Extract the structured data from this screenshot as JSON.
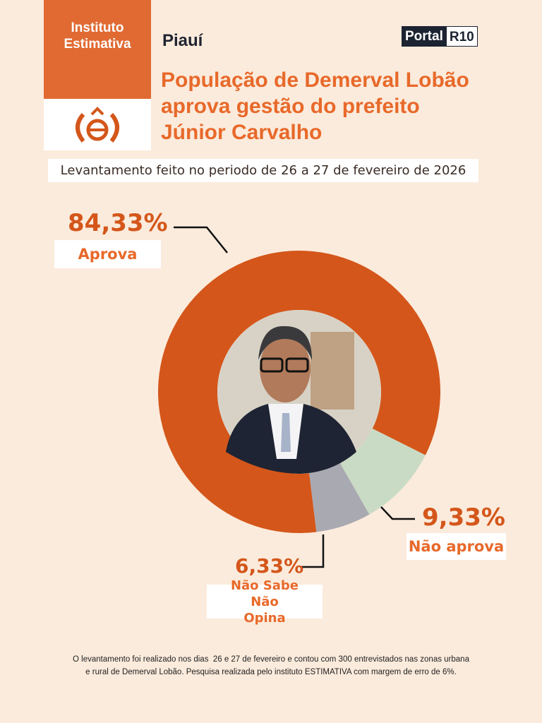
{
  "header": {
    "institute": "Instituto Estimativa",
    "region": "Piauí",
    "brand": [
      "Portal",
      "R10"
    ]
  },
  "title_lines": [
    "População de Demerval Lobão",
    "aprova gestão do prefeito",
    "Júnior Carvalho"
  ],
  "subtitle": "Levantamento feito no periodo de 26 a 27 de fevereiro de 2026",
  "chart_data": {
    "type": "donut",
    "categories": [
      "Aprova",
      "Não aprova",
      "Não Sabe Não Opina"
    ],
    "values": [
      84.33,
      9.33,
      6.33
    ],
    "value_labels": [
      "84,33%",
      "9,33%",
      "6,33%"
    ],
    "colors": [
      "#d4561a",
      "#c9dbc4",
      "#a9a9b1"
    ]
  },
  "footer_lines": [
    "O levantamento foi realizado nos dias  26 e 27 de fevereiro e contou com 300 entrevistados nas zonas urbana",
    "e rural de Demerval Lobão. Pesquisa realizada pelo instituto ESTIMATIVA com margem de erro de 6%."
  ]
}
